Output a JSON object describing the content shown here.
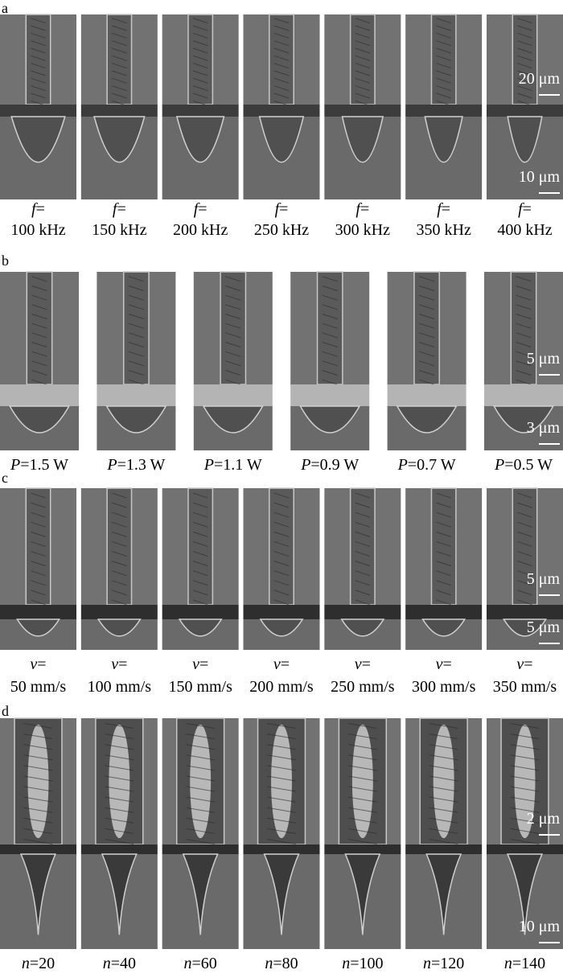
{
  "panels": [
    {
      "label": "a",
      "top_scale": "20 μm",
      "bottom_scale": "10 μm",
      "images": [
        {
          "symbol": "f",
          "rest": "=",
          "value": "100 kHz"
        },
        {
          "symbol": "f",
          "rest": "=",
          "value": "150 kHz"
        },
        {
          "symbol": "f",
          "rest": "=",
          "value": "200 kHz"
        },
        {
          "symbol": "f",
          "rest": "=",
          "value": "250 kHz"
        },
        {
          "symbol": "f",
          "rest": "=",
          "value": "300 kHz"
        },
        {
          "symbol": "f",
          "rest": "=",
          "value": "350 kHz"
        },
        {
          "symbol": "f",
          "rest": "=",
          "value": "400 kHz"
        }
      ]
    },
    {
      "label": "b",
      "top_scale": "5 μm",
      "bottom_scale": "3 μm",
      "images": [
        {
          "symbol": "P",
          "rest": "=1.5 W"
        },
        {
          "symbol": "P",
          "rest": "=1.3 W"
        },
        {
          "symbol": "P",
          "rest": "=1.1 W"
        },
        {
          "symbol": "P",
          "rest": "=0.9 W"
        },
        {
          "symbol": "P",
          "rest": "=0.7 W"
        },
        {
          "symbol": "P",
          "rest": "=0.5 W"
        }
      ]
    },
    {
      "label": "c",
      "top_scale": "5 μm",
      "bottom_scale": "5 μm",
      "images": [
        {
          "symbol": "v",
          "rest": "=",
          "value": "50 mm/s"
        },
        {
          "symbol": "v",
          "rest": "=",
          "value": "100 mm/s"
        },
        {
          "symbol": "v",
          "rest": "=",
          "value": "150 mm/s"
        },
        {
          "symbol": "v",
          "rest": "=",
          "value": "200 mm/s"
        },
        {
          "symbol": "v",
          "rest": "=",
          "value": "250 mm/s"
        },
        {
          "symbol": "v",
          "rest": "=",
          "value": "300 mm/s"
        },
        {
          "symbol": "v",
          "rest": "=",
          "value": "350 mm/s"
        }
      ]
    },
    {
      "label": "d",
      "top_scale": "2 μm",
      "bottom_scale": "10 μm",
      "images": [
        {
          "symbol": "n",
          "rest": "=20"
        },
        {
          "symbol": "n",
          "rest": "=40"
        },
        {
          "symbol": "n",
          "rest": "=60"
        },
        {
          "symbol": "n",
          "rest": "=80"
        },
        {
          "symbol": "n",
          "rest": "=100"
        },
        {
          "symbol": "n",
          "rest": "=120"
        },
        {
          "symbol": "n",
          "rest": "=140"
        }
      ]
    }
  ]
}
